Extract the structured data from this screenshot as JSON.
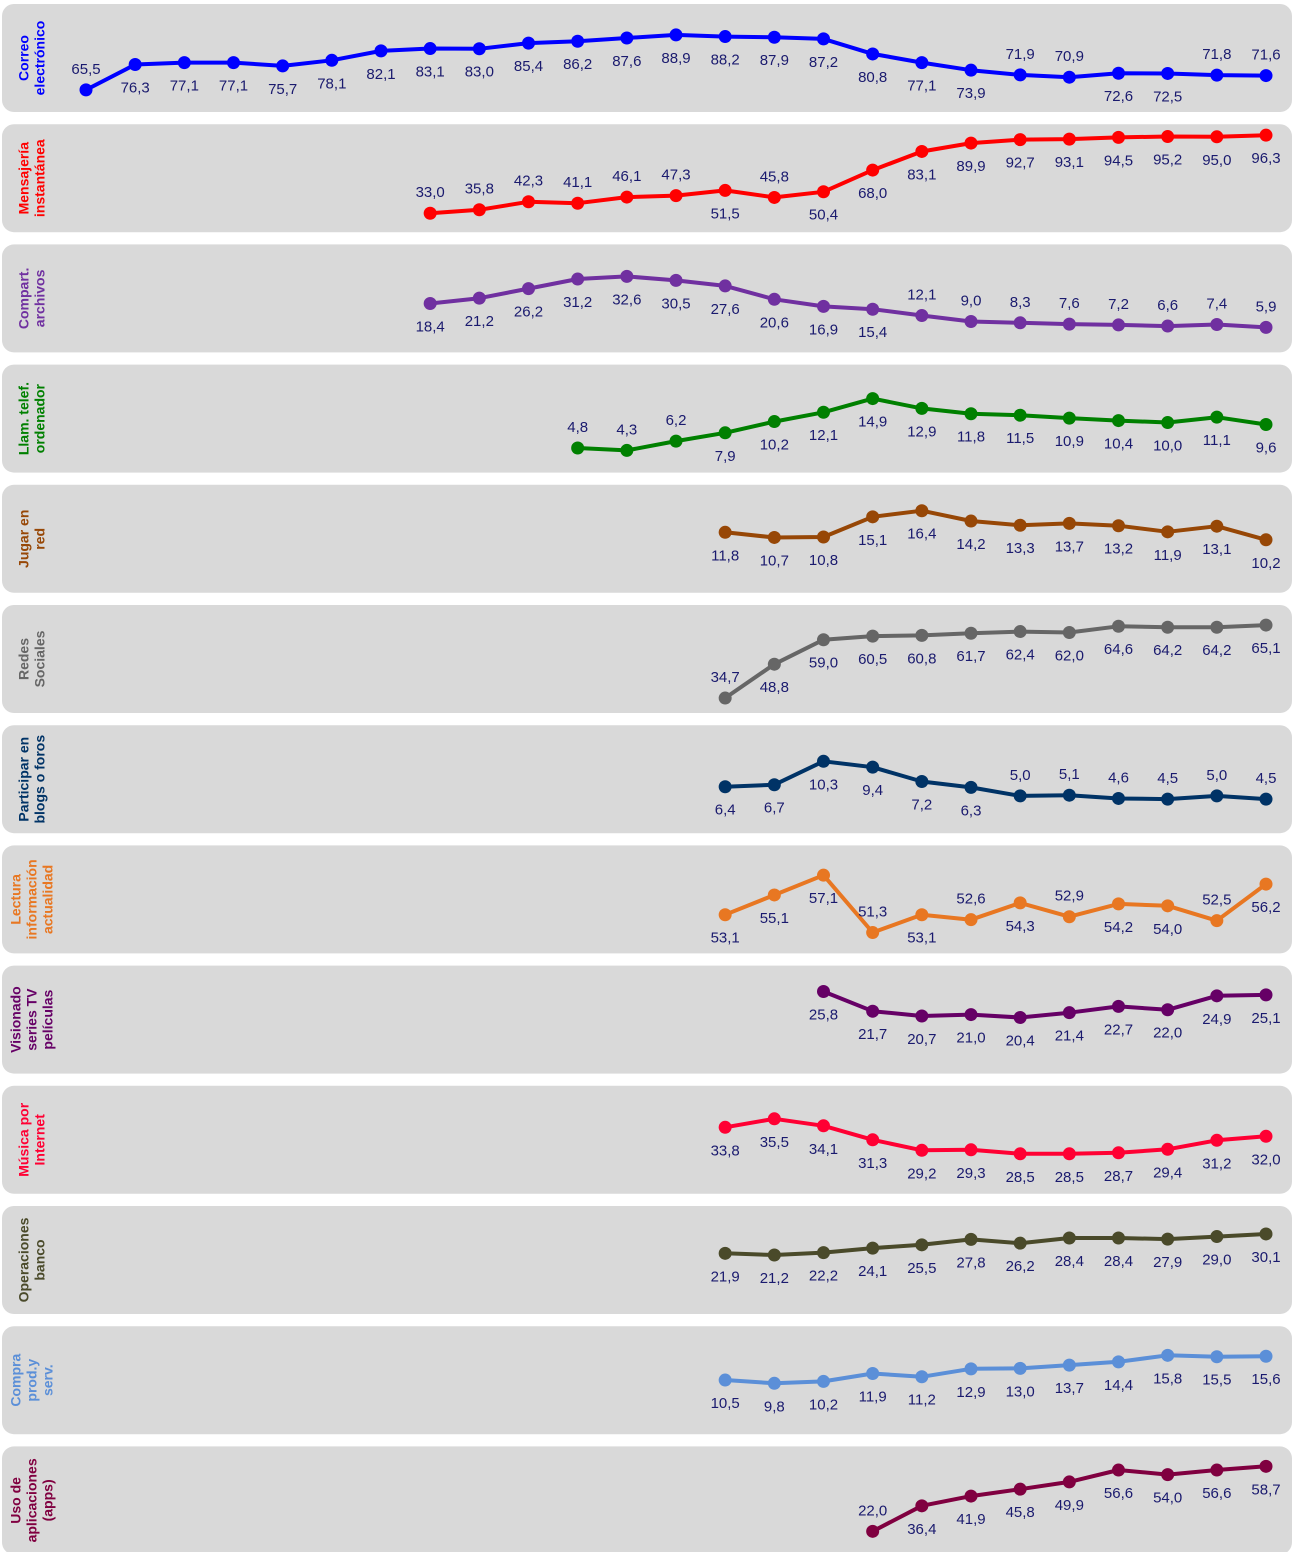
{
  "chart_data": [
    {
      "type": "line",
      "title": [
        "Correo",
        "electrónico"
      ],
      "color": "#0000ff",
      "ylim": [
        59.5,
        97.8
      ],
      "categories": [
        null,
        null,
        null,
        null,
        null,
        null,
        null,
        null,
        null,
        null,
        null,
        null,
        null,
        null,
        null,
        null,
        null,
        null,
        null,
        null,
        null,
        null,
        null,
        null,
        null
      ],
      "values": [
        65.5,
        76.3,
        77.1,
        77.1,
        75.7,
        78.1,
        82.1,
        83.1,
        83.0,
        85.4,
        86.2,
        87.6,
        88.9,
        88.2,
        87.9,
        87.2,
        80.8,
        77.1,
        73.9,
        71.9,
        70.9,
        72.6,
        72.5,
        71.8,
        71.6
      ],
      "value_labels": [
        "65,5",
        "76,3",
        "77,1",
        "77,1",
        "75,7",
        "78,1",
        "82,1",
        "83,1",
        "83,0",
        "85,4",
        "86,2",
        "87,6",
        "88,9",
        "88,2",
        "87,9",
        "87,2",
        "80,8",
        "77,1",
        "73,9",
        "71,9",
        "70,9",
        "72,6",
        "72,5",
        "71,8",
        "71,6"
      ]
    },
    {
      "type": "line",
      "title": [
        "Mensajería",
        "instantánea"
      ],
      "color": "#ff0000",
      "ylim": [
        24.1,
        97.1
      ],
      "categories": [
        null,
        null,
        null,
        null,
        null,
        null,
        null,
        null,
        null,
        null,
        null,
        null,
        null,
        null,
        null,
        null,
        null,
        null,
        null,
        null,
        null,
        null,
        null,
        null,
        null
      ],
      "values": [
        null,
        null,
        null,
        null,
        null,
        null,
        null,
        33.0,
        35.8,
        42.3,
        41.1,
        46.1,
        47.3,
        51.5,
        45.8,
        50.4,
        68.0,
        83.1,
        89.9,
        92.7,
        93.1,
        94.5,
        95.2,
        95.0,
        96.3
      ],
      "value_labels": [
        null,
        null,
        null,
        null,
        null,
        null,
        null,
        "33,0",
        "35,8",
        "42,3",
        "41,1",
        "46,1",
        "47,3",
        "51,5",
        "45,8",
        "50,4",
        "68,0",
        "83,1",
        "89,9",
        "92,7",
        "93,1",
        "94,5",
        "95,2",
        "95,0",
        "96,3"
      ]
    },
    {
      "type": "line",
      "title": [
        "Compart.",
        "archivos"
      ],
      "color": "#7030a0",
      "ylim": [
        -3.0,
        44.1
      ],
      "categories": [
        null,
        null,
        null,
        null,
        null,
        null,
        null,
        null,
        null,
        null,
        null,
        null,
        null,
        null,
        null,
        null,
        null,
        null,
        null,
        null,
        null,
        null,
        null,
        null,
        null
      ],
      "values": [
        null,
        null,
        null,
        null,
        null,
        null,
        null,
        18.4,
        21.2,
        26.2,
        31.2,
        32.6,
        30.5,
        27.6,
        20.6,
        16.9,
        15.4,
        12.1,
        9.0,
        8.3,
        7.6,
        7.2,
        6.6,
        7.4,
        5.9
      ],
      "value_labels": [
        null,
        null,
        null,
        null,
        null,
        null,
        null,
        "18,4",
        "21,2",
        "26,2",
        "31,2",
        "32,6",
        "30,5",
        "27,6",
        "20,6",
        "16,9",
        "15,4",
        "12,1",
        "9,0",
        "8,3",
        "7,6",
        "7,2",
        "6,6",
        "7,4",
        "5,9"
      ]
    },
    {
      "type": "line",
      "title": [
        "Llam. telef.",
        "ordenador"
      ],
      "color": "#008000",
      "ylim": [
        1.4,
        19.8
      ],
      "categories": [
        null,
        null,
        null,
        null,
        null,
        null,
        null,
        null,
        null,
        null,
        null,
        null,
        null,
        null,
        null,
        null,
        null,
        null,
        null,
        null,
        null,
        null,
        null,
        null,
        null
      ],
      "values": [
        null,
        null,
        null,
        null,
        null,
        null,
        null,
        null,
        null,
        null,
        4.8,
        4.3,
        6.2,
        7.9,
        10.2,
        12.1,
        14.9,
        12.9,
        11.8,
        11.5,
        10.9,
        10.4,
        10.0,
        11.1,
        9.6
      ],
      "value_labels": [
        null,
        null,
        null,
        null,
        null,
        null,
        null,
        null,
        null,
        null,
        "4,8",
        "4,3",
        "6,2",
        "7,9",
        "10,2",
        "12,1",
        "14,9",
        "12,9",
        "11,8",
        "11,5",
        "10,9",
        "10,4",
        "10,0",
        "11,1",
        "9,6"
      ]
    },
    {
      "type": "line",
      "title": [
        "Jugar en",
        "red"
      ],
      "color": "#974706",
      "ylim": [
        0.6,
        19.8
      ],
      "categories": [
        null,
        null,
        null,
        null,
        null,
        null,
        null,
        null,
        null,
        null,
        null,
        null,
        null,
        null,
        null,
        null,
        null,
        null,
        null,
        null,
        null,
        null,
        null,
        null,
        null
      ],
      "values": [
        null,
        null,
        null,
        null,
        null,
        null,
        null,
        null,
        null,
        null,
        null,
        null,
        null,
        11.8,
        10.7,
        10.8,
        15.1,
        16.4,
        14.2,
        13.3,
        13.7,
        13.2,
        11.9,
        13.1,
        10.2
      ],
      "value_labels": [
        null,
        null,
        null,
        null,
        null,
        null,
        null,
        null,
        null,
        null,
        null,
        null,
        null,
        "11,8",
        "10,7",
        "10,8",
        "15,1",
        "16,4",
        "14,2",
        "13,3",
        "13,7",
        "13,2",
        "11,9",
        "13,1",
        "10,2"
      ]
    },
    {
      "type": "line",
      "title": [
        "Redes",
        "Sociales"
      ],
      "color": "#666666",
      "ylim": [
        31.8,
        69.3
      ],
      "categories": [
        null,
        null,
        null,
        null,
        null,
        null,
        null,
        null,
        null,
        null,
        null,
        null,
        null,
        null,
        null,
        null,
        null,
        null,
        null,
        null,
        null,
        null,
        null,
        null,
        null
      ],
      "values": [
        null,
        null,
        null,
        null,
        null,
        null,
        null,
        null,
        null,
        null,
        null,
        null,
        null,
        34.7,
        48.8,
        59.0,
        60.5,
        60.8,
        61.7,
        62.4,
        62.0,
        64.6,
        64.2,
        64.2,
        65.1
      ],
      "value_labels": [
        null,
        null,
        null,
        null,
        null,
        null,
        null,
        null,
        null,
        null,
        null,
        null,
        null,
        "34,7",
        "48,8",
        "59,0",
        "60,5",
        "60,8",
        "61,7",
        "62,4",
        "62,0",
        "64,6",
        "64,2",
        "64,2",
        "65,1"
      ]
    },
    {
      "type": "line",
      "title": [
        "Participar en",
        "blogs o foros"
      ],
      "color": "#003366",
      "ylim": [
        0.5,
        14.3
      ],
      "categories": [
        null,
        null,
        null,
        null,
        null,
        null,
        null,
        null,
        null,
        null,
        null,
        null,
        null,
        null,
        null,
        null,
        null,
        null,
        null,
        null,
        null,
        null,
        null,
        null,
        null
      ],
      "values": [
        null,
        null,
        null,
        null,
        null,
        null,
        null,
        null,
        null,
        null,
        null,
        null,
        null,
        6.4,
        6.7,
        10.3,
        9.4,
        7.2,
        6.3,
        5.0,
        5.1,
        4.6,
        4.5,
        5.0,
        4.5
      ],
      "value_labels": [
        null,
        null,
        null,
        null,
        null,
        null,
        null,
        null,
        null,
        null,
        null,
        null,
        null,
        "6,4",
        "6,7",
        "10,3",
        "9,4",
        "7,2",
        "6,3",
        "5,0",
        "5,1",
        "4,6",
        "4,5",
        "5,0",
        "4,5"
      ]
    },
    {
      "type": "line",
      "title": [
        "Lectura",
        "información",
        "actualidad"
      ],
      "color": "#e87722",
      "ylim": [
        50.0,
        59.1
      ],
      "categories": [
        null,
        null,
        null,
        null,
        null,
        null,
        null,
        null,
        null,
        null,
        null,
        null,
        null,
        null,
        null,
        null,
        null,
        null,
        null,
        null,
        null,
        null,
        null,
        null,
        null
      ],
      "values": [
        null,
        null,
        null,
        null,
        null,
        null,
        null,
        null,
        null,
        null,
        null,
        null,
        null,
        53.1,
        55.1,
        57.1,
        51.3,
        53.1,
        52.6,
        54.3,
        52.9,
        54.2,
        54.0,
        52.5,
        56.2
      ],
      "value_labels": [
        null,
        null,
        null,
        null,
        null,
        null,
        null,
        null,
        null,
        null,
        null,
        null,
        null,
        "53,1",
        "55,1",
        "57,1",
        "51,3",
        "53,1",
        "52,6",
        "54,3",
        "52,9",
        "54,2",
        "54,0",
        "52,5",
        "56,2"
      ]
    },
    {
      "type": "line",
      "title": [
        "Visionado",
        "series TV",
        "películas"
      ],
      "color": "#660066",
      "ylim": [
        10.4,
        29.1
      ],
      "categories": [
        null,
        null,
        null,
        null,
        null,
        null,
        null,
        null,
        null,
        null,
        null,
        null,
        null,
        null,
        null,
        null,
        null,
        null,
        null,
        null,
        null,
        null,
        null,
        null,
        null
      ],
      "values": [
        null,
        null,
        null,
        null,
        null,
        null,
        null,
        null,
        null,
        null,
        null,
        null,
        null,
        null,
        null,
        25.8,
        21.7,
        20.7,
        21.0,
        20.4,
        21.4,
        22.7,
        22.0,
        24.9,
        25.1
      ],
      "value_labels": [
        null,
        null,
        null,
        null,
        null,
        null,
        null,
        null,
        null,
        null,
        null,
        null,
        null,
        null,
        null,
        "25,8",
        "21,7",
        "20,7",
        "21,0",
        "20,4",
        "21,4",
        "22,7",
        "22,0",
        "24,9",
        "25,1"
      ]
    },
    {
      "type": "line",
      "title": [
        "Música por",
        "Internet"
      ],
      "color": "#ff0033",
      "ylim": [
        22.1,
        40.1
      ],
      "categories": [
        null,
        null,
        null,
        null,
        null,
        null,
        null,
        null,
        null,
        null,
        null,
        null,
        null,
        null,
        null,
        null,
        null,
        null,
        null,
        null,
        null,
        null,
        null,
        null,
        null
      ],
      "values": [
        null,
        null,
        null,
        null,
        null,
        null,
        null,
        null,
        null,
        null,
        null,
        null,
        null,
        33.8,
        35.5,
        34.1,
        31.3,
        29.2,
        29.3,
        28.5,
        28.5,
        28.7,
        29.4,
        31.2,
        32.0
      ],
      "value_labels": [
        null,
        null,
        null,
        null,
        null,
        null,
        null,
        null,
        null,
        null,
        null,
        null,
        null,
        "33,8",
        "35,5",
        "34,1",
        "31,3",
        "29,2",
        "29,3",
        "28,5",
        "28,5",
        "28,7",
        "29,4",
        "31,2",
        "32,0"
      ]
    },
    {
      "type": "line",
      "title": [
        "Operaciones",
        "banco"
      ],
      "color": "#4a4a2a",
      "ylim": [
        -0.4,
        37.7
      ],
      "categories": [
        null,
        null,
        null,
        null,
        null,
        null,
        null,
        null,
        null,
        null,
        null,
        null,
        null,
        null,
        null,
        null,
        null,
        null,
        null,
        null,
        null,
        null,
        null,
        null,
        null
      ],
      "values": [
        null,
        null,
        null,
        null,
        null,
        null,
        null,
        null,
        null,
        null,
        null,
        null,
        null,
        21.9,
        21.2,
        22.2,
        24.1,
        25.5,
        27.8,
        26.2,
        28.4,
        28.4,
        27.9,
        29.0,
        30.1
      ],
      "value_labels": [
        null,
        null,
        null,
        null,
        null,
        null,
        null,
        null,
        null,
        null,
        null,
        null,
        null,
        "21,9",
        "21,2",
        "22,2",
        "24,1",
        "25,5",
        "27,8",
        "26,2",
        "28,4",
        "28,4",
        "27,9",
        "29,0",
        "30,1"
      ]
    },
    {
      "type": "line",
      "title": [
        "Compra",
        "prod.y",
        "serv."
      ],
      "color": "#5b8fd8",
      "ylim": [
        0.6,
        19.9
      ],
      "categories": [
        null,
        null,
        null,
        null,
        null,
        null,
        null,
        null,
        null,
        null,
        null,
        null,
        null,
        null,
        null,
        null,
        null,
        null,
        null,
        null,
        null,
        null,
        null,
        null,
        null
      ],
      "values": [
        null,
        null,
        null,
        null,
        null,
        null,
        null,
        null,
        null,
        null,
        null,
        null,
        null,
        10.5,
        9.8,
        10.2,
        11.9,
        11.2,
        12.9,
        13.0,
        13.7,
        14.4,
        15.8,
        15.5,
        15.6
      ],
      "value_labels": [
        null,
        null,
        null,
        null,
        null,
        null,
        null,
        null,
        null,
        null,
        null,
        null,
        null,
        "10,5",
        "9,8",
        "10,2",
        "11,9",
        "11,2",
        "12,9",
        "13,0",
        "13,7",
        "14,4",
        "15,8",
        "15,5",
        "15,6"
      ]
    },
    {
      "type": "line",
      "title": [
        "Uso de",
        "aplicaciones",
        "(apps)"
      ],
      "color": "#800040",
      "ylim": [
        13.5,
        64.3
      ],
      "categories": [
        null,
        null,
        null,
        null,
        null,
        null,
        null,
        null,
        null,
        null,
        null,
        null,
        null,
        null,
        null,
        null,
        null,
        null,
        null,
        null,
        null,
        null,
        null,
        null,
        null
      ],
      "values": [
        null,
        null,
        null,
        null,
        null,
        null,
        null,
        null,
        null,
        null,
        null,
        null,
        null,
        null,
        null,
        null,
        22.0,
        36.4,
        41.9,
        45.8,
        49.9,
        56.6,
        54.0,
        56.6,
        58.7
      ],
      "value_labels": [
        null,
        null,
        null,
        null,
        null,
        null,
        null,
        null,
        null,
        null,
        null,
        null,
        null,
        null,
        null,
        null,
        "22,0",
        "36,4",
        "41,9",
        "45,8",
        "49,9",
        "56,6",
        "54,0",
        "56,6",
        "58,7"
      ]
    }
  ]
}
